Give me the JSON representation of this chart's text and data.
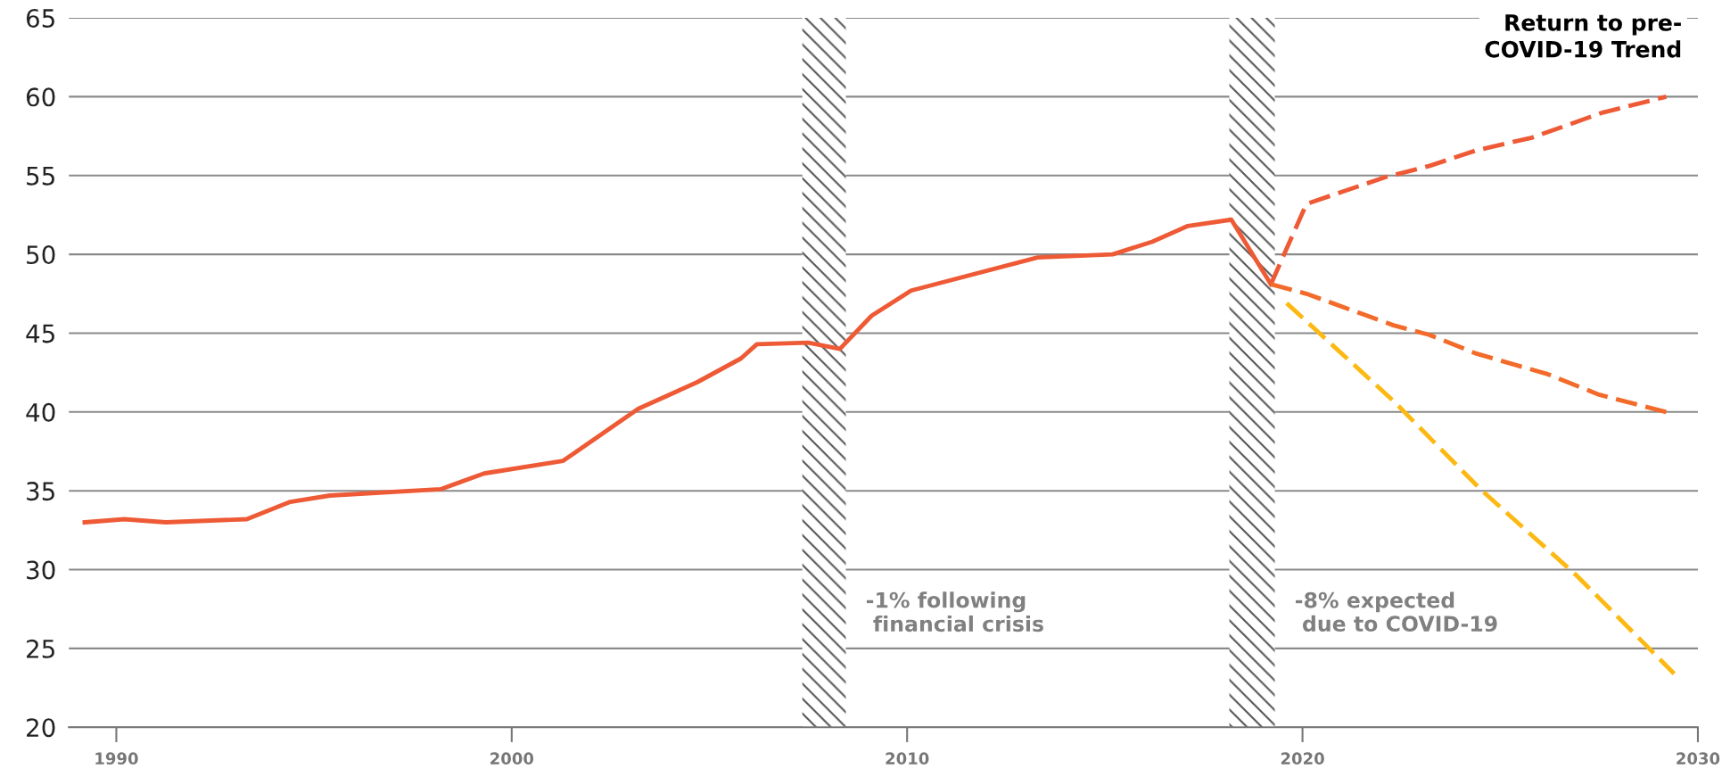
{
  "chart_data": {
    "type": "line",
    "series": [
      {
        "color": "#ee5a35",
        "line_style": "solid",
        "x": [
          1989.2,
          1990.2,
          1991.25,
          1993.3,
          1994.4,
          1995.4,
          1998.2,
          1999.3,
          2001.3,
          2003.2,
          2004.7,
          2005.8,
          2006.2,
          2007.5,
          2008.3,
          2009.1,
          2010.1,
          2013.3,
          2015.2,
          2016.2,
          2017.1,
          2018.2,
          2019.2
        ],
        "values": [
          33.0,
          33.2,
          33.0,
          33.2,
          34.3,
          34.7,
          35.1,
          36.1,
          36.9,
          40.2,
          41.9,
          43.4,
          44.3,
          44.4,
          44.0,
          46.1,
          47.7,
          49.8,
          50.0,
          50.8,
          51.8,
          52.2,
          48.1
        ]
      },
      {
        "name": "Return to pre-\nCOVID-19 Trend",
        "color": "#ee5a35",
        "line_style": "dashed",
        "x": [
          2019.2,
          2020.1,
          2022.1,
          2023.2,
          2024.4,
          2025.8,
          2027.6,
          2029.2
        ],
        "values": [
          48.1,
          53.2,
          54.9,
          55.6,
          56.6,
          57.4,
          59.0,
          60.0
        ]
      },
      {
        "color": "#f26b2a",
        "line_style": "dashed",
        "x": [
          2019.2,
          2020.1,
          2022.3,
          2023.2,
          2024.4,
          2026.2,
          2027.5,
          2029.2
        ],
        "values": [
          48.1,
          47.5,
          45.5,
          44.9,
          43.7,
          42.4,
          41.1,
          40.0
        ]
      },
      {
        "color": "#fdb913",
        "line_style": "dashed",
        "x": [
          2019.6,
          2022.3,
          2024.5,
          2026.9,
          2027.5,
          2029.4
        ],
        "values": [
          46.9,
          40.7,
          35.1,
          29.7,
          28.2,
          23.4
        ]
      }
    ],
    "xlim": [
      1988.8,
      2030
    ],
    "xticks": [
      1990,
      2000,
      2010,
      2020,
      2030
    ],
    "ylim": [
      20,
      65
    ],
    "yticks": [
      20,
      25,
      30,
      35,
      40,
      45,
      50,
      55,
      60,
      65
    ],
    "grid": "y",
    "marker": "none",
    "legend": false,
    "bands": [
      {
        "axis": "x",
        "from": 2007.35,
        "to": 2008.45,
        "label": "-1% following\n financial crisis",
        "color": "#555555"
      },
      {
        "axis": "x",
        "from": 2018.15,
        "to": 2019.3,
        "label": "-8% expected\n due to COVID-19",
        "color": "#555555"
      }
    ]
  }
}
